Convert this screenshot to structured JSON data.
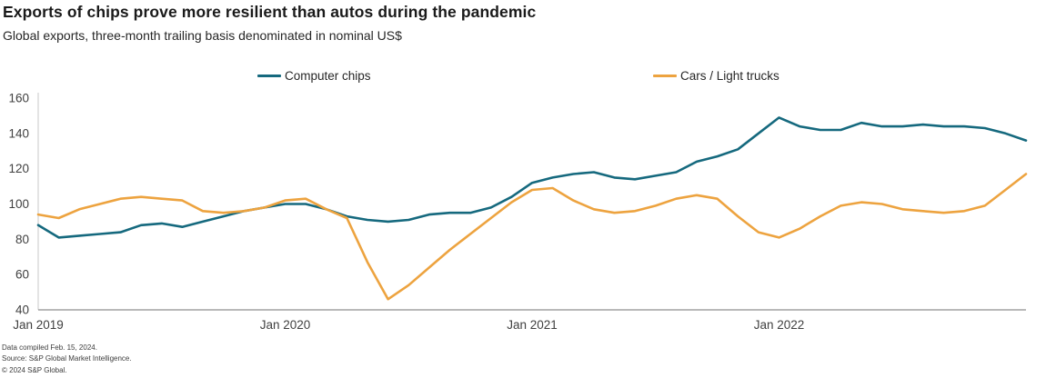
{
  "header": {
    "title": "Exports of chips prove more resilient than autos during the pandemic",
    "subtitle": "Global exports, three-month trailing basis denominated in nominal US$"
  },
  "chart_data": {
    "type": "line",
    "title": "Exports of chips prove more resilient than autos during the pandemic",
    "subtitle": "Global exports, three-month trailing basis denominated in nominal US$",
    "x_unit": "month",
    "x_start": "Jan 2019",
    "x_end": "Jan 2023",
    "x_tick_labels": [
      "Jan 2019",
      "Jan 2020",
      "Jan 2021",
      "Jan 2022"
    ],
    "x_tick_positions": [
      0,
      12,
      24,
      36
    ],
    "y_ticks": [
      40,
      60,
      80,
      100,
      120,
      140,
      160
    ],
    "ylim": [
      40,
      160
    ],
    "grid": false,
    "legend_position": "top",
    "series": [
      {
        "name": "Computer chips",
        "color": "#15697E",
        "values": [
          88,
          81,
          82,
          83,
          84,
          88,
          89,
          87,
          90,
          93,
          96,
          98,
          100,
          100,
          97,
          93,
          91,
          90,
          91,
          94,
          95,
          95,
          98,
          104,
          112,
          115,
          117,
          118,
          115,
          114,
          116,
          118,
          124,
          127,
          131,
          140,
          149,
          144,
          142,
          142,
          146,
          144,
          144,
          145,
          144,
          144,
          143,
          140,
          136
        ]
      },
      {
        "name": "Cars / Light trucks",
        "color": "#EDA33F",
        "values": [
          94,
          92,
          97,
          100,
          103,
          104,
          103,
          102,
          96,
          95,
          96,
          98,
          102,
          103,
          97,
          92,
          67,
          46,
          54,
          64,
          74,
          83,
          92,
          101,
          108,
          109,
          102,
          97,
          95,
          96,
          99,
          103,
          105,
          103,
          93,
          84,
          81,
          86,
          93,
          99,
          101,
          100,
          97,
          96,
          95,
          96,
          99,
          108,
          117
        ]
      }
    ]
  },
  "footer": {
    "lines": [
      "Data compiled Feb. 15, 2024.",
      "Source: S&P Global Market Intelligence.",
      "© 2024 S&P Global."
    ]
  }
}
